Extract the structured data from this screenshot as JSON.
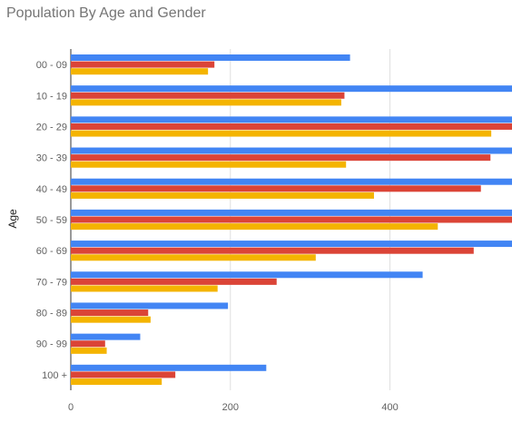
{
  "chart_data": {
    "type": "bar",
    "orientation": "horizontal",
    "title": "Population By Age and Gender",
    "ylabel": "Age",
    "xlabel": "",
    "categories": [
      "00 - 09",
      "10 - 19",
      "20 - 29",
      "30 - 39",
      "40 - 49",
      "50 - 59",
      "60 - 69",
      "70 - 79",
      "80 - 89",
      "90 - 99",
      "100 +"
    ],
    "series": [
      {
        "color": "#4285f4",
        "values": [
          350,
          560,
          560,
          560,
          560,
          560,
          560,
          441,
          197,
          87,
          245
        ]
      },
      {
        "color": "#db4437",
        "values": [
          180,
          343,
          560,
          526,
          514,
          560,
          505,
          258,
          97,
          43,
          131
        ]
      },
      {
        "color": "#f4b400",
        "values": [
          172,
          339,
          527,
          345,
          380,
          460,
          307,
          184,
          100,
          45,
          114
        ]
      }
    ],
    "xlim": [
      0,
      553
    ],
    "x_ticks": [
      0,
      200,
      400
    ],
    "x_tick_labels": [
      "0",
      "200",
      "400"
    ],
    "grid": true
  }
}
